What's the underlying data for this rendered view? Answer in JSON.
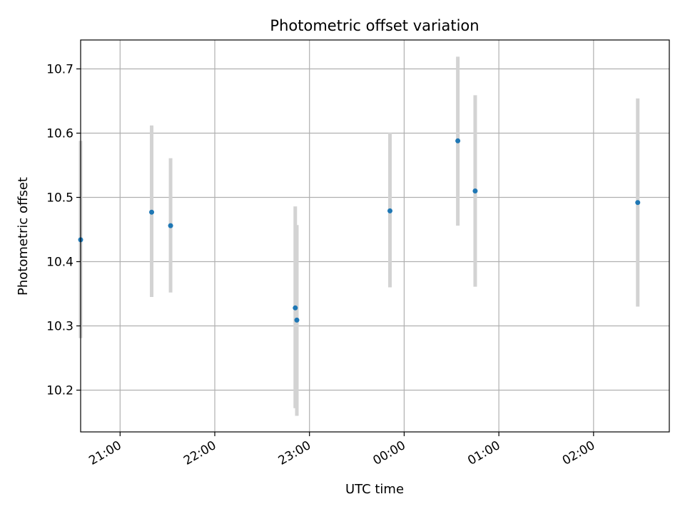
{
  "chart_data": {
    "type": "scatter",
    "title": "Photometric offset variation",
    "xlabel": "UTC time",
    "ylabel": "Photometric offset",
    "grid": true,
    "x_axis": {
      "kind": "time",
      "range": [
        "20:35",
        "02:48"
      ],
      "ticks": [
        "21:00",
        "22:00",
        "23:00",
        "00:00",
        "01:00",
        "02:00"
      ],
      "tick_label_rotation_deg": 30
    },
    "y_axis": {
      "range": [
        10.135,
        10.745
      ],
      "ticks": [
        10.2,
        10.3,
        10.4,
        10.5,
        10.6,
        10.7
      ],
      "tick_labels": [
        "10.2",
        "10.3",
        "10.4",
        "10.5",
        "10.6",
        "10.7"
      ]
    },
    "points": [
      {
        "time": "20:35",
        "y": 10.434,
        "y_low": 10.281,
        "y_high": 10.588
      },
      {
        "time": "21:20",
        "y": 10.477,
        "y_low": 10.345,
        "y_high": 10.612
      },
      {
        "time": "21:32",
        "y": 10.456,
        "y_low": 10.352,
        "y_high": 10.561
      },
      {
        "time": "22:51",
        "y": 10.328,
        "y_low": 10.172,
        "y_high": 10.486
      },
      {
        "time": "22:52",
        "y": 10.309,
        "y_low": 10.16,
        "y_high": 10.457
      },
      {
        "time": "23:51",
        "y": 10.479,
        "y_low": 10.36,
        "y_high": 10.601
      },
      {
        "time": "00:34",
        "y": 10.588,
        "y_low": 10.456,
        "y_high": 10.719
      },
      {
        "time": "00:45",
        "y": 10.51,
        "y_low": 10.361,
        "y_high": 10.659
      },
      {
        "time": "02:28",
        "y": 10.492,
        "y_low": 10.33,
        "y_high": 10.654
      }
    ],
    "colors": {
      "point": "#1f77b4",
      "errorbar": "#d3d3d3",
      "grid": "#b0b0b0",
      "axes": "#000000"
    }
  }
}
